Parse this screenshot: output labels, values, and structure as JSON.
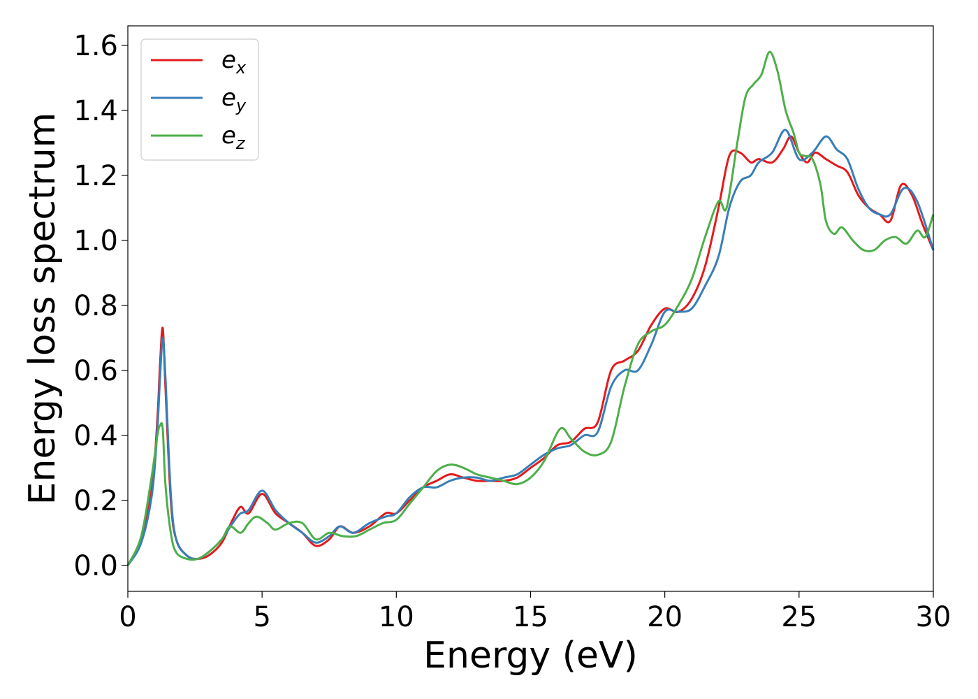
{
  "chart_data": {
    "type": "line",
    "title": "",
    "xlabel": "Energy (eV)",
    "ylabel": "Energy loss spectrum",
    "xlim": [
      0,
      30
    ],
    "ylim": [
      -0.08,
      1.66
    ],
    "xticks": [
      0,
      5,
      10,
      15,
      20,
      25,
      30
    ],
    "yticks": [
      0.0,
      0.2,
      0.4,
      0.6,
      0.8,
      1.0,
      1.2,
      1.4,
      1.6
    ],
    "grid": false,
    "legend_position": "top-left",
    "series": [
      {
        "name": "e",
        "subscript": "x",
        "color": "#e41a1c",
        "x": [
          0,
          0.5,
          0.9,
          1.1,
          1.2,
          1.3,
          1.4,
          1.6,
          1.8,
          2.2,
          2.6,
          3.0,
          3.5,
          3.9,
          4.2,
          4.5,
          5.0,
          5.5,
          6.0,
          6.5,
          7.0,
          7.5,
          7.9,
          8.4,
          9.0,
          9.6,
          10.0,
          10.5,
          11.0,
          11.5,
          12.0,
          12.5,
          13.0,
          13.5,
          14.0,
          14.5,
          15.0,
          15.5,
          16.0,
          16.5,
          17.0,
          17.5,
          18.0,
          18.5,
          19.0,
          19.5,
          20.0,
          20.5,
          21.0,
          21.5,
          22.0,
          22.4,
          22.8,
          23.2,
          23.5,
          24.0,
          24.4,
          24.7,
          25.0,
          25.3,
          25.6,
          26.0,
          26.4,
          26.8,
          27.2,
          27.6,
          28.0,
          28.4,
          28.8,
          29.2,
          29.6,
          30.0
        ],
        "values": [
          0.0,
          0.08,
          0.24,
          0.45,
          0.62,
          0.73,
          0.55,
          0.2,
          0.08,
          0.03,
          0.02,
          0.03,
          0.07,
          0.14,
          0.18,
          0.16,
          0.22,
          0.16,
          0.13,
          0.1,
          0.06,
          0.08,
          0.12,
          0.1,
          0.12,
          0.16,
          0.16,
          0.2,
          0.24,
          0.26,
          0.28,
          0.27,
          0.26,
          0.26,
          0.26,
          0.27,
          0.3,
          0.33,
          0.37,
          0.38,
          0.42,
          0.44,
          0.6,
          0.63,
          0.66,
          0.74,
          0.79,
          0.78,
          0.82,
          0.92,
          1.1,
          1.26,
          1.27,
          1.24,
          1.25,
          1.24,
          1.28,
          1.32,
          1.27,
          1.24,
          1.27,
          1.25,
          1.23,
          1.21,
          1.14,
          1.1,
          1.08,
          1.06,
          1.17,
          1.14,
          1.05,
          0.97
        ]
      },
      {
        "name": "e",
        "subscript": "y",
        "color": "#377eb8",
        "x": [
          0,
          0.5,
          0.9,
          1.1,
          1.2,
          1.3,
          1.4,
          1.6,
          1.8,
          2.2,
          2.6,
          3.0,
          3.5,
          3.9,
          4.2,
          4.5,
          5.0,
          5.5,
          6.0,
          6.5,
          7.0,
          7.5,
          7.9,
          8.4,
          9.0,
          9.6,
          10.0,
          10.5,
          11.0,
          11.5,
          12.0,
          12.5,
          13.0,
          13.5,
          14.0,
          14.5,
          15.0,
          15.5,
          16.0,
          16.5,
          17.0,
          17.5,
          18.0,
          18.5,
          19.0,
          19.5,
          20.0,
          20.5,
          21.0,
          21.5,
          22.0,
          22.4,
          22.8,
          23.2,
          23.5,
          24.0,
          24.5,
          25.0,
          25.5,
          26.0,
          26.4,
          26.8,
          27.2,
          27.6,
          28.0,
          28.4,
          28.9,
          29.4,
          30.0
        ],
        "values": [
          0.0,
          0.07,
          0.22,
          0.42,
          0.58,
          0.7,
          0.58,
          0.22,
          0.08,
          0.03,
          0.02,
          0.04,
          0.08,
          0.13,
          0.16,
          0.17,
          0.23,
          0.17,
          0.13,
          0.1,
          0.07,
          0.09,
          0.12,
          0.1,
          0.13,
          0.15,
          0.16,
          0.21,
          0.24,
          0.24,
          0.26,
          0.27,
          0.27,
          0.26,
          0.27,
          0.28,
          0.31,
          0.34,
          0.36,
          0.37,
          0.4,
          0.41,
          0.55,
          0.6,
          0.6,
          0.68,
          0.78,
          0.78,
          0.79,
          0.86,
          0.95,
          1.1,
          1.18,
          1.2,
          1.24,
          1.27,
          1.34,
          1.25,
          1.27,
          1.32,
          1.28,
          1.25,
          1.16,
          1.1,
          1.08,
          1.08,
          1.16,
          1.12,
          0.97
        ]
      },
      {
        "name": "e",
        "subscript": "z",
        "color": "#4daf4a",
        "x": [
          0,
          0.5,
          0.9,
          1.1,
          1.2,
          1.3,
          1.4,
          1.6,
          1.8,
          2.2,
          2.6,
          3.0,
          3.5,
          3.8,
          4.2,
          4.5,
          4.8,
          5.2,
          5.5,
          6.0,
          6.5,
          7.0,
          7.5,
          8.0,
          8.5,
          9.0,
          9.5,
          10.0,
          10.5,
          11.0,
          11.5,
          12.0,
          12.5,
          13.0,
          13.5,
          14.0,
          14.5,
          15.0,
          15.5,
          16.1,
          16.5,
          17.0,
          17.5,
          18.0,
          18.5,
          19.0,
          19.5,
          20.0,
          20.5,
          21.0,
          21.5,
          22.0,
          22.3,
          22.7,
          23.0,
          23.3,
          23.6,
          23.9,
          24.2,
          24.5,
          24.8,
          25.0,
          25.2,
          25.5,
          25.8,
          26.0,
          26.3,
          26.6,
          27.0,
          27.4,
          27.8,
          28.2,
          28.6,
          29.0,
          29.4,
          29.7,
          30.0
        ],
        "values": [
          0.0,
          0.09,
          0.28,
          0.4,
          0.43,
          0.42,
          0.25,
          0.1,
          0.04,
          0.02,
          0.02,
          0.04,
          0.08,
          0.12,
          0.1,
          0.13,
          0.15,
          0.13,
          0.11,
          0.13,
          0.13,
          0.08,
          0.1,
          0.09,
          0.09,
          0.11,
          0.13,
          0.14,
          0.19,
          0.24,
          0.29,
          0.31,
          0.3,
          0.28,
          0.27,
          0.26,
          0.25,
          0.27,
          0.32,
          0.42,
          0.39,
          0.35,
          0.34,
          0.38,
          0.55,
          0.68,
          0.72,
          0.74,
          0.8,
          0.88,
          1.01,
          1.12,
          1.1,
          1.3,
          1.44,
          1.48,
          1.51,
          1.58,
          1.52,
          1.4,
          1.33,
          1.27,
          1.26,
          1.25,
          1.17,
          1.06,
          1.02,
          1.04,
          1.0,
          0.97,
          0.97,
          1.0,
          1.01,
          0.99,
          1.03,
          1.01,
          1.08
        ]
      }
    ]
  }
}
